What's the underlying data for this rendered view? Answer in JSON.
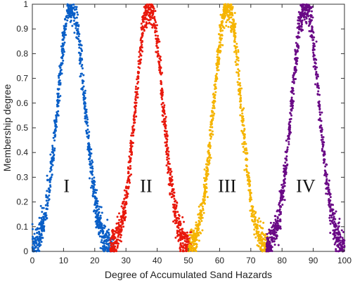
{
  "chart_data": {
    "type": "scatter",
    "title": "",
    "xlabel": "Degree of Accumulated Sand Hazards",
    "ylabel": "Membership degree",
    "xlim": [
      0,
      100
    ],
    "ylim": [
      0,
      1
    ],
    "xticks": [
      0,
      10,
      20,
      30,
      40,
      50,
      60,
      70,
      80,
      90,
      100
    ],
    "yticks": [
      0,
      0.1,
      0.2,
      0.3,
      0.4,
      0.5,
      0.6,
      0.7,
      0.8,
      0.9,
      1
    ],
    "grid": false,
    "legend": "none",
    "series": [
      {
        "label": "I",
        "color": "#0a5fc7",
        "peak": 12.5,
        "sigma": 4.3,
        "x_range": [
          0,
          26
        ],
        "label_x": 10,
        "label_y": 0.24
      },
      {
        "label": "II",
        "color": "#e8190d",
        "peak": 37.5,
        "sigma": 4.3,
        "x_range": [
          25,
          51
        ],
        "label_x": 34.5,
        "label_y": 0.24
      },
      {
        "label": "III",
        "color": "#f5b400",
        "peak": 62.5,
        "sigma": 4.3,
        "x_range": [
          50,
          76
        ],
        "label_x": 59.5,
        "label_y": 0.24
      },
      {
        "label": "IV",
        "color": "#6a0a86",
        "peak": 87.5,
        "sigma": 4.3,
        "x_range": [
          75,
          100
        ],
        "label_x": 84.5,
        "label_y": 0.24
      }
    ]
  }
}
